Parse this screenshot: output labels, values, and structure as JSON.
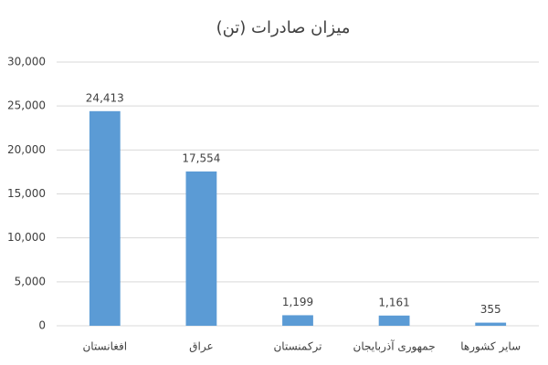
{
  "chart_data": {
    "type": "bar",
    "title": "میزان صادرات (تن)",
    "categories": [
      "افغانستان",
      "عراق",
      "ترکمنستان",
      "جمهوری آذربایجان",
      "سایر کشورها"
    ],
    "values": [
      24413,
      17554,
      1199,
      1161,
      355
    ],
    "value_labels": [
      "24,413",
      "17,554",
      "1,199",
      "1,161",
      "355"
    ],
    "color": "#5b9bd5",
    "ylim": [
      0,
      30000
    ],
    "yticks": [
      0,
      {
        "value": 5000,
        "label": "5,000"
      },
      {
        "value": 10000,
        "label": "10,000"
      },
      {
        "value": 15000,
        "label": "15,000"
      },
      {
        "value": 20000,
        "label": "20,000"
      },
      {
        "value": 25000,
        "label": "25,000"
      },
      {
        "value": 30000,
        "label": "30,000"
      }
    ],
    "grid": true
  }
}
